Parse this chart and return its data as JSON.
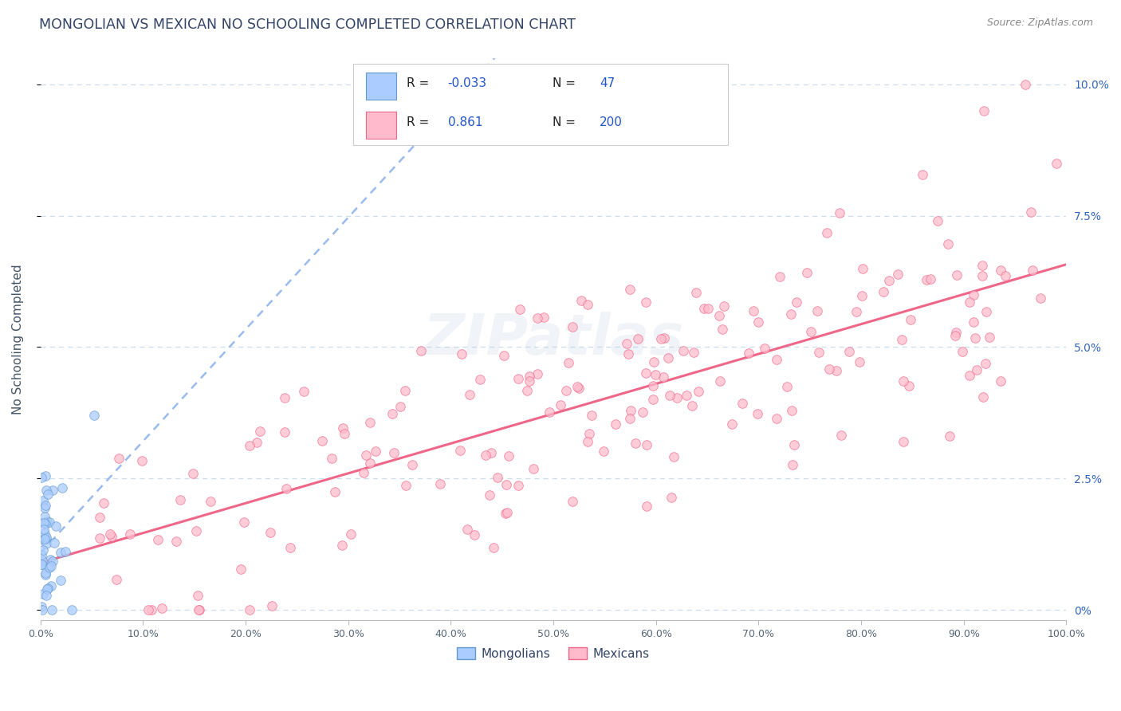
{
  "title": "MONGOLIAN VS MEXICAN NO SCHOOLING COMPLETED CORRELATION CHART",
  "source": "Source: ZipAtlas.com",
  "ylabel": "No Schooling Completed",
  "xlim": [
    0,
    1.0
  ],
  "ylim": [
    -0.002,
    0.105
  ],
  "y_ticks": [
    0.0,
    0.025,
    0.05,
    0.075,
    0.1
  ],
  "y_tick_labels": [
    "0%",
    "2.5%",
    "5.0%",
    "7.5%",
    "10.0%"
  ],
  "x_ticks": [
    0.0,
    0.1,
    0.2,
    0.3,
    0.4,
    0.5,
    0.6,
    0.7,
    0.8,
    0.9,
    1.0
  ],
  "x_tick_labels": [
    "0.0%",
    "10.0%",
    "20.0%",
    "30.0%",
    "40.0%",
    "50.0%",
    "60.0%",
    "70.0%",
    "80.0%",
    "90.0%",
    "100.0%"
  ],
  "mongolian_R": -0.033,
  "mongolian_N": 47,
  "mexican_R": 0.861,
  "mexican_N": 200,
  "mongolian_color": "#aaccff",
  "mongolian_edge": "#6699cc",
  "mexican_color": "#ffbbcc",
  "mexican_edge": "#ee6688",
  "mongolian_line_color": "#99bbee",
  "mexican_line_color": "#ee6688",
  "background_color": "#ffffff",
  "grid_color": "#ccddee",
  "title_color": "#334466",
  "source_color": "#888888",
  "watermark": "ZIPatlas",
  "fig_width": 14.06,
  "fig_height": 8.92,
  "dpi": 100
}
